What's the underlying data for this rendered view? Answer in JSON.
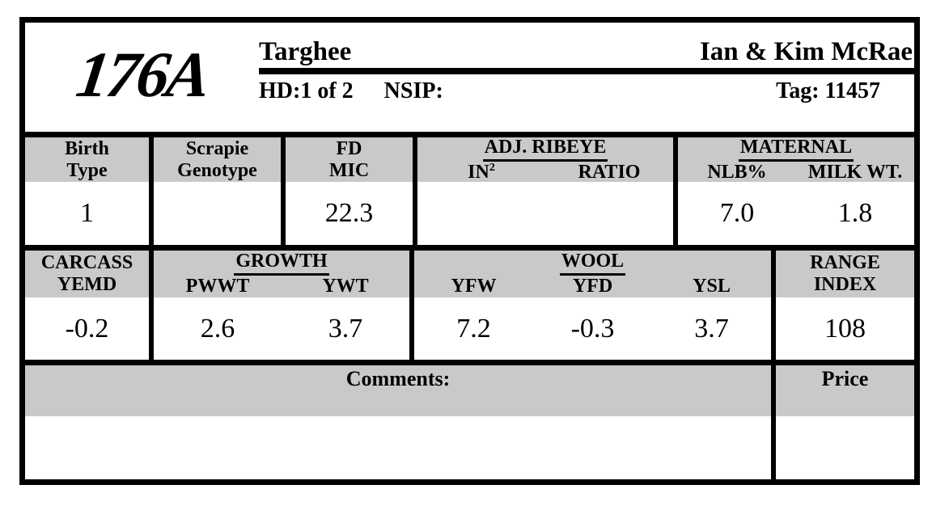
{
  "header": {
    "animal_id": "176A",
    "breed": "Targhee",
    "owner": "Ian & Kim McRae",
    "hd_label": "HD:1 of 2",
    "nsip_label": "NSIP:",
    "tag_label": "Tag: 11457"
  },
  "stats_row1": {
    "birth_type": {
      "label_line1": "Birth",
      "label_line2": "Type",
      "value": "1"
    },
    "scrapie": {
      "label_line1": "Scrapie",
      "label_line2": "Genotype",
      "value": ""
    },
    "fd_mic": {
      "label_line1": "FD",
      "label_line2": "MIC",
      "value": "22.3"
    },
    "adj_ribeye": {
      "group_label": "ADJ. RIBEYE",
      "columns": [
        {
          "label": "IN",
          "label_sup": "2",
          "value": ""
        },
        {
          "label": "RATIO",
          "value": ""
        }
      ]
    },
    "maternal": {
      "group_label": "MATERNAL",
      "columns": [
        {
          "label": "NLB%",
          "value": "7.0"
        },
        {
          "label": "MILK WT.",
          "value": "1.8"
        }
      ]
    }
  },
  "stats_row2": {
    "carcass": {
      "label_line1": "CARCASS",
      "label_line2": "YEMD",
      "value": "-0.2"
    },
    "growth": {
      "group_label": "GROWTH",
      "columns": [
        {
          "label": "PWWT",
          "value": "2.6"
        },
        {
          "label": "YWT",
          "value": "3.7"
        }
      ]
    },
    "wool": {
      "group_label": "WOOL",
      "columns": [
        {
          "label": "YFW",
          "value": "7.2"
        },
        {
          "label": "YFD",
          "value": "-0.3"
        },
        {
          "label": "YSL",
          "value": "3.7"
        }
      ]
    },
    "range_index": {
      "label_line1": "RANGE",
      "label_line2": "INDEX",
      "value": "108"
    }
  },
  "bottom": {
    "comments_label": "Comments:",
    "comments_value": "",
    "price_label": "Price",
    "price_value": ""
  },
  "colors": {
    "header_gray": "#c9c9c9",
    "border_black": "#000000"
  }
}
